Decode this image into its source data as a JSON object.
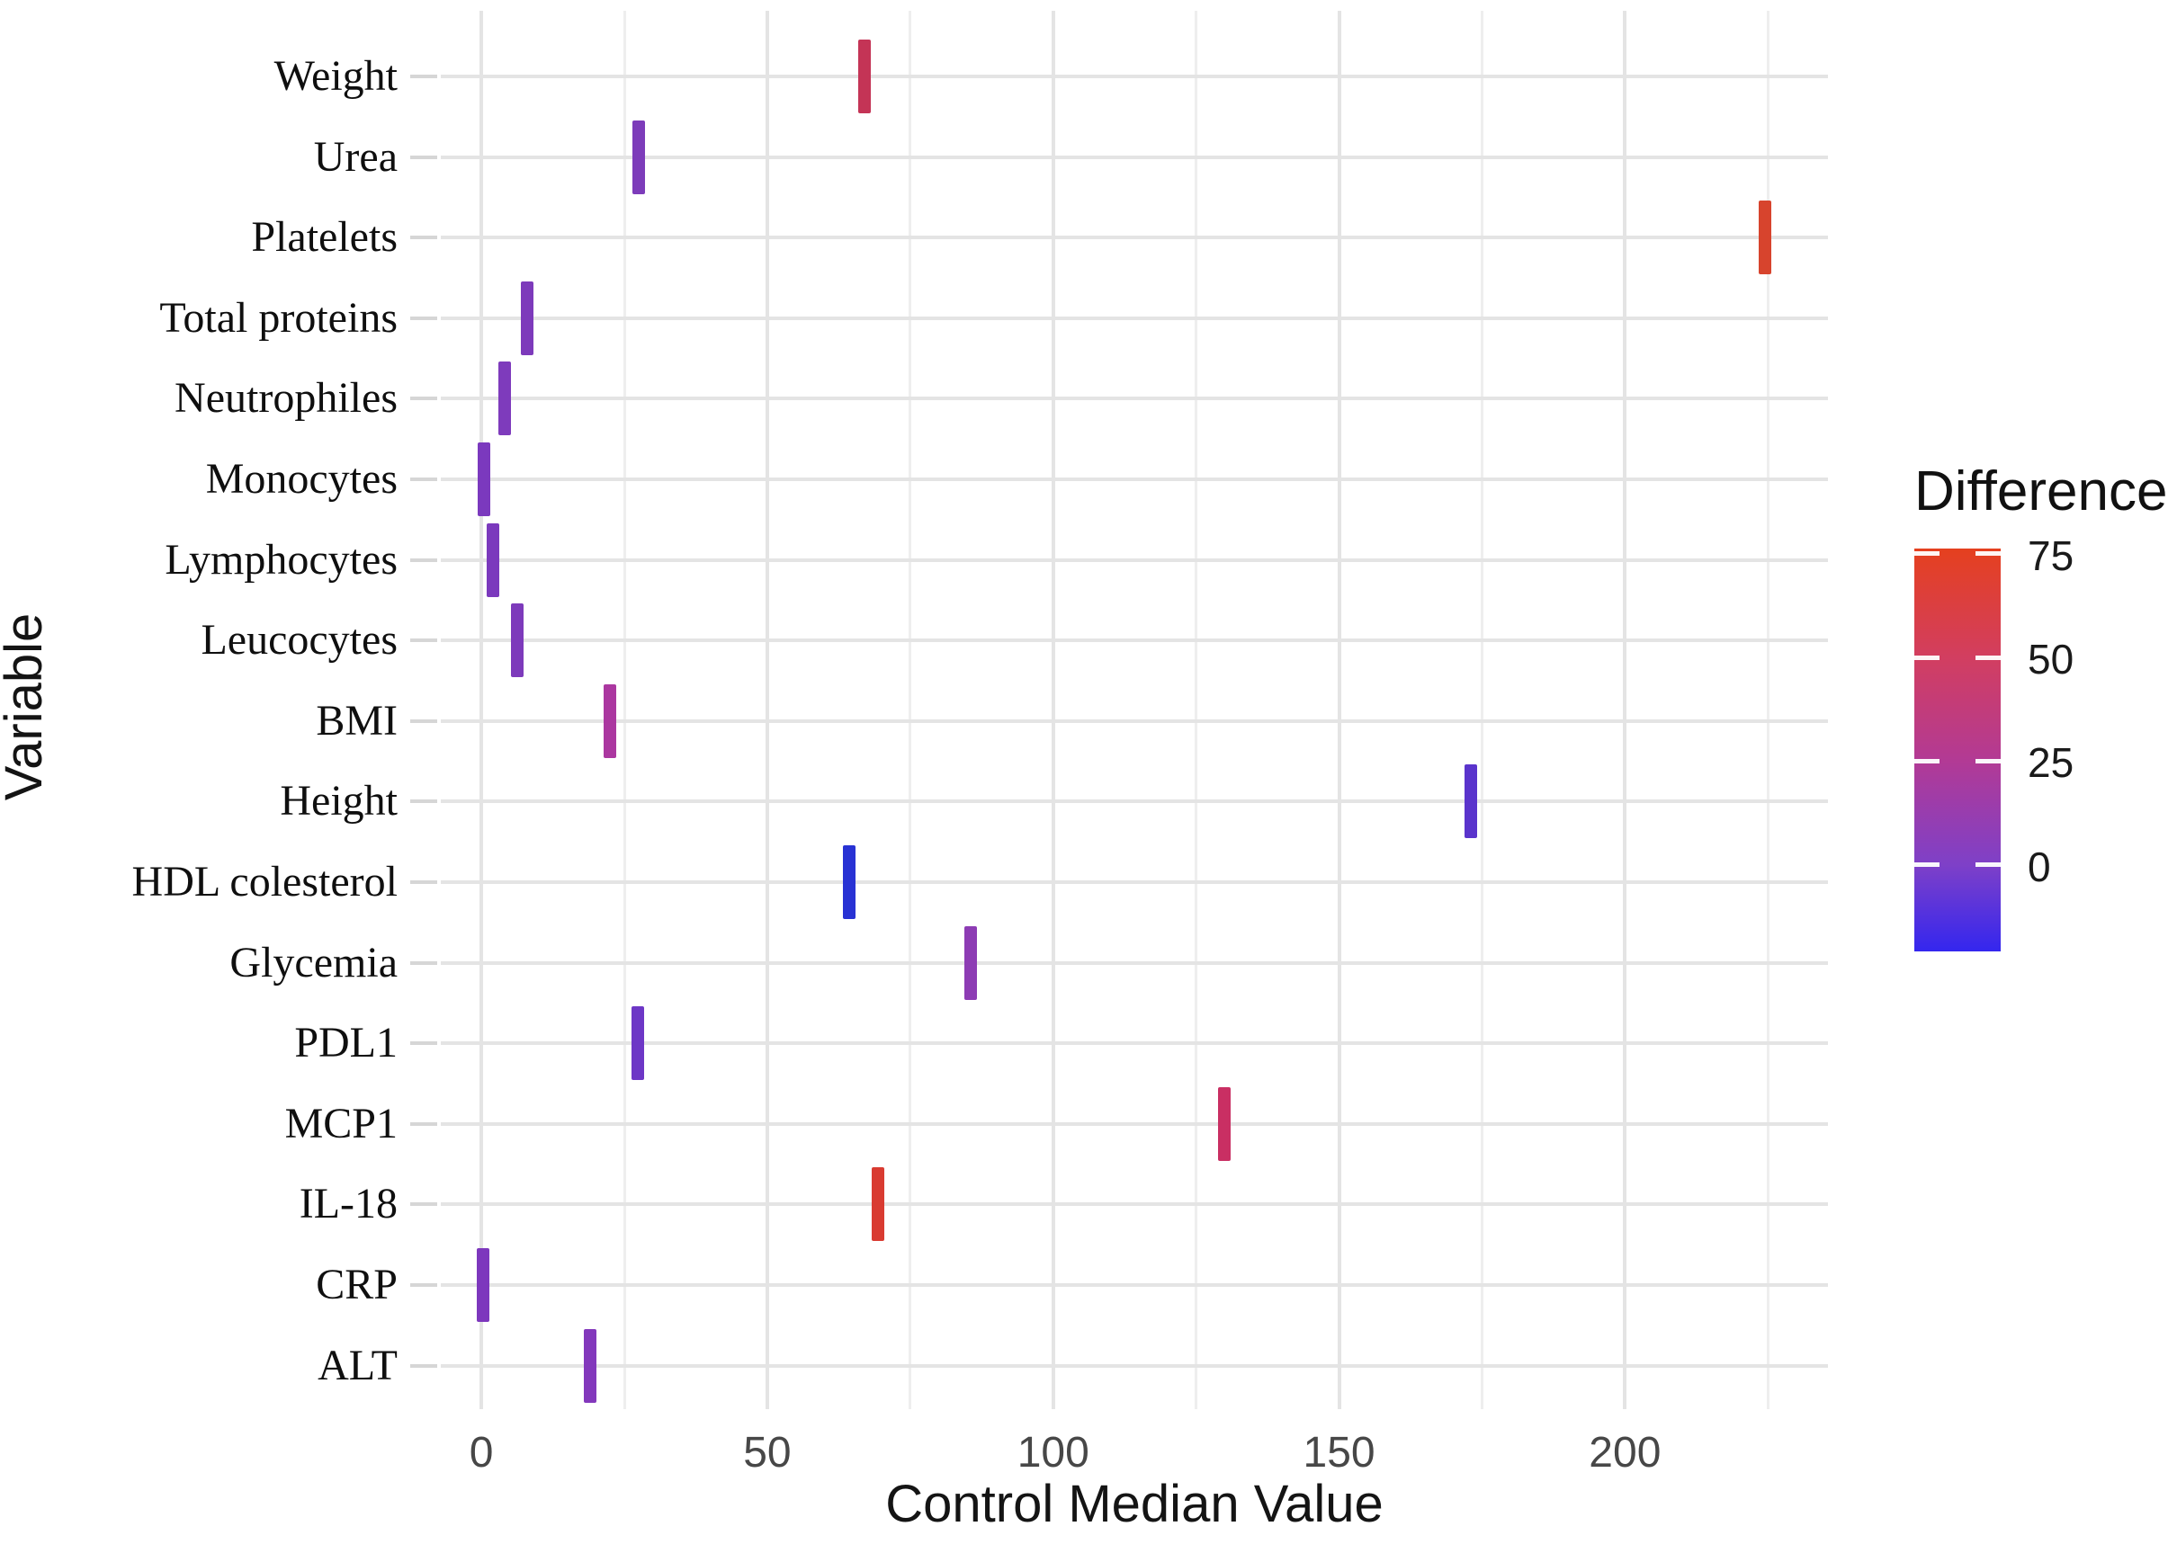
{
  "chart_data": {
    "type": "scatter",
    "marker": "vertical-tick-bar",
    "title": "",
    "xlabel": "Control Median Value",
    "ylabel": "Variable",
    "xlim": [
      -7.1,
      235.5
    ],
    "x_ticks": [
      0,
      50,
      100,
      150,
      200
    ],
    "x_minor_ticks": [
      25,
      75,
      125,
      175,
      225
    ],
    "grid": "on",
    "categories": [
      "Weight",
      "Urea",
      "Platelets",
      "Total proteins",
      "Neutrophiles",
      "Monocytes",
      "Lymphocytes",
      "Leucocytes",
      "BMI",
      "Height",
      "HDL colesterol",
      "Glycemia",
      "PDL1",
      "MCP1",
      "IL-18",
      "CRP",
      "ALT"
    ],
    "series": [
      {
        "name": "Control Median Value colored by Difference",
        "points": [
          {
            "label": "Weight",
            "x": 67,
            "color": "#c43456"
          },
          {
            "label": "Urea",
            "x": 27.5,
            "color": "#7d3cba"
          },
          {
            "label": "Platelets",
            "x": 224.5,
            "color": "#d7442d"
          },
          {
            "label": "Total proteins",
            "x": 8,
            "color": "#7d3abb"
          },
          {
            "label": "Neutrophiles",
            "x": 4,
            "color": "#7e3bbc"
          },
          {
            "label": "Monocytes",
            "x": 0.5,
            "color": "#7b39be"
          },
          {
            "label": "Lymphocytes",
            "x": 2,
            "color": "#7b39bd"
          },
          {
            "label": "Leucocytes",
            "x": 6.2,
            "color": "#7d3abb"
          },
          {
            "label": "BMI",
            "x": 22.4,
            "color": "#ab37a0"
          },
          {
            "label": "Height",
            "x": 173,
            "color": "#5a34cc"
          },
          {
            "label": "HDL colesterol",
            "x": 64.4,
            "color": "#2832d4"
          },
          {
            "label": "Glycemia",
            "x": 85.5,
            "color": "#8d3cb4"
          },
          {
            "label": "PDL1",
            "x": 27.4,
            "color": "#6d37c6"
          },
          {
            "label": "MCP1",
            "x": 130,
            "color": "#c92f63"
          },
          {
            "label": "IL-18",
            "x": 69.4,
            "color": "#d93b31"
          },
          {
            "label": "CRP",
            "x": 0.3,
            "color": "#7d37bd"
          },
          {
            "label": "ALT",
            "x": 19,
            "color": "#8338bc"
          }
        ]
      }
    ],
    "legend_position": "right"
  },
  "legend": {
    "title": "Difference",
    "tick_labels": [
      "75",
      "50",
      "25",
      "0"
    ],
    "tick_values": [
      75,
      50,
      25,
      0
    ],
    "gradient_stops": [
      {
        "value": 76,
        "color": "#e5401f"
      },
      {
        "value": 50,
        "color": "#d23e60"
      },
      {
        "value": 25,
        "color": "#b23a95"
      },
      {
        "value": 0,
        "color": "#7e40c8"
      },
      {
        "value": -21,
        "color": "#3326ef"
      }
    ]
  },
  "colors": {
    "background": "#ffffff",
    "grid_major": "#e4e4e4",
    "grid_minor": "#eeeeee",
    "axis_text": "#474747",
    "label_text": "#0f0f0f"
  }
}
